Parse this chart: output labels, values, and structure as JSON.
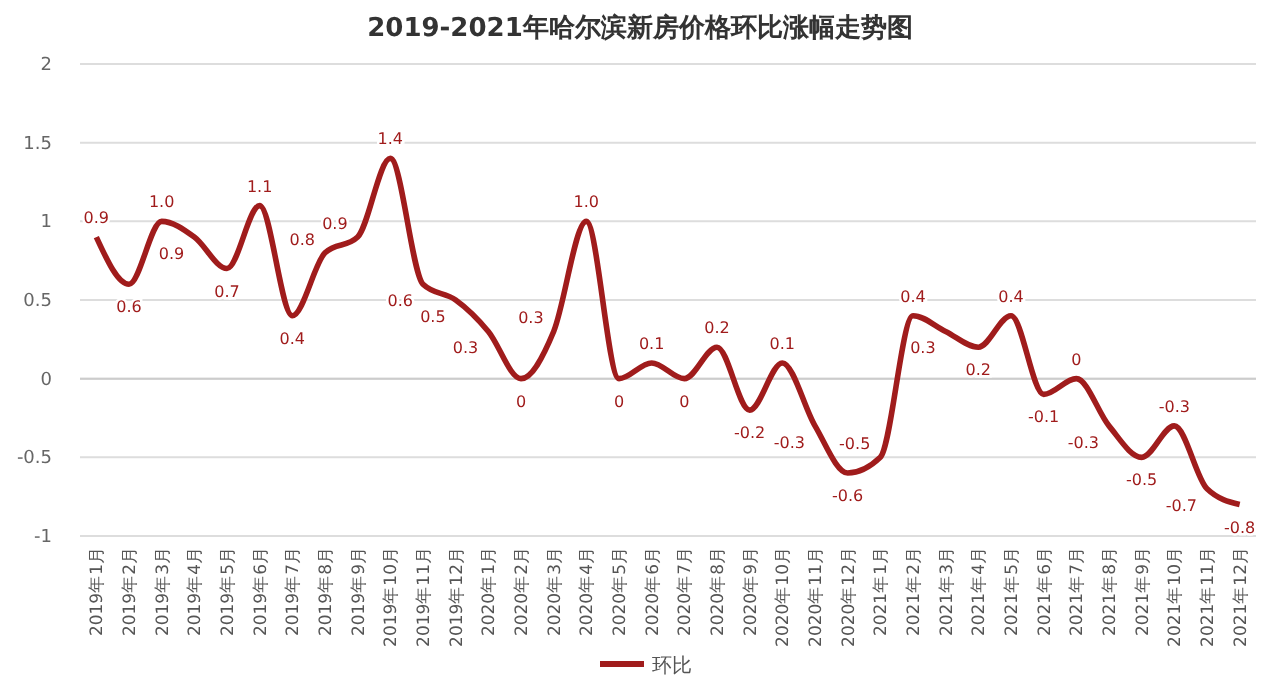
{
  "chart_data": {
    "type": "line",
    "title": "2019-2021年哈尔滨新房价格环比涨幅走势图",
    "categories": [
      "2019年1月",
      "2019年2月",
      "2019年3月",
      "2019年4月",
      "2019年5月",
      "2019年6月",
      "2019年7月",
      "2019年8月",
      "2019年9月",
      "2019年10月",
      "2019年11月",
      "2019年12月",
      "2020年1月",
      "2020年2月",
      "2020年3月",
      "2020年4月",
      "2020年5月",
      "2020年6月",
      "2020年7月",
      "2020年8月",
      "2020年9月",
      "2020年10月",
      "2020年11月",
      "2020年12月",
      "2021年1月",
      "2021年2月",
      "2021年3月",
      "2021年4月",
      "2021年5月",
      "2021年6月",
      "2021年7月",
      "2021年8月",
      "2021年9月",
      "2021年10月",
      "2021年11月",
      "2021年12月"
    ],
    "series": [
      {
        "name": "环比",
        "color": "#a01c1c",
        "values": [
          0.9,
          0.6,
          1.0,
          0.9,
          0.7,
          1.1,
          0.4,
          0.8,
          0.9,
          1.4,
          0.6,
          0.5,
          0.3,
          0,
          0.3,
          1.0,
          0,
          0.1,
          0,
          0.2,
          -0.2,
          0.1,
          -0.3,
          -0.6,
          -0.5,
          0.4,
          0.3,
          0.2,
          0.4,
          -0.1,
          0,
          -0.3,
          -0.5,
          -0.3,
          -0.7,
          -0.8
        ],
        "value_labels": [
          "0.9",
          "0.6",
          "1.0",
          "0.9",
          "0.7",
          "1.1",
          "0.4",
          "0.8",
          "0.9",
          "1.4",
          "0.6",
          "0.5",
          "0.3",
          "0",
          "0.3",
          "1.0",
          "0",
          "0.1",
          "0",
          "0.2",
          "-0.2",
          "0.1",
          "-0.3",
          "-0.6",
          "-0.5",
          "0.4",
          "0.3",
          "0.2",
          "0.4",
          "-0.1",
          "0",
          "-0.3",
          "-0.5",
          "-0.3",
          "-0.7",
          "-0.8"
        ]
      }
    ],
    "ylim": [
      -1,
      2
    ],
    "yticks": [
      -1,
      -0.5,
      0,
      0.5,
      1,
      1.5,
      2
    ],
    "grid": "y",
    "legend": "bottom",
    "marker": "none",
    "line_style": "solid"
  }
}
